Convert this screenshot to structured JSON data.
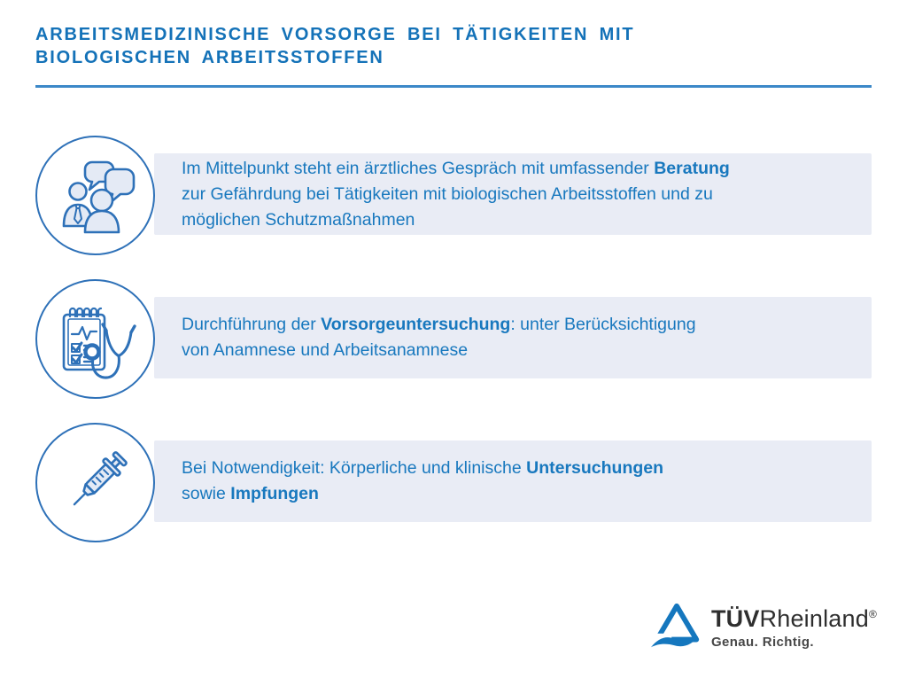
{
  "page": {
    "title_line1": "ARBEITSMEDIZINISCHE VORSORGE BEI TÄTIGKEITEN MIT",
    "title_line2": "BIOLOGISCHEN ARBEITSSTOFFEN"
  },
  "colors": {
    "title_blue": "#1472b8",
    "body_text_blue": "#1878be",
    "divider_blue": "#3c88c8",
    "box_background": "#e9ecf5",
    "icon_stroke_blue": "#2e71b8",
    "icon_fill_light": "#e4eaf5",
    "logo_blue": "#1577be",
    "logo_text_dark": "#2e2e2e"
  },
  "rows": [
    {
      "icon": "consultation-people-icon",
      "lines": [
        [
          {
            "text": "Im Mittelpunkt steht ein ärztliches Gespräch mit umfassender ",
            "bold": false
          },
          {
            "text": "Beratung",
            "bold": true
          }
        ],
        [
          {
            "text": "zur Gefährdung bei Tätigkeiten mit biologischen Arbeitsstoffen und zu",
            "bold": false
          }
        ],
        [
          {
            "text": "möglichen Schutzmaßnahmen",
            "bold": false
          }
        ]
      ]
    },
    {
      "icon": "checklist-stethoscope-icon",
      "lines": [
        [
          {
            "text": "Durchführung der ",
            "bold": false
          },
          {
            "text": "Vorsorgeuntersuchung",
            "bold": true
          },
          {
            "text": ": unter Berücksichtigung",
            "bold": false
          }
        ],
        [
          {
            "text": "von Anamnese und Arbeitsanamnese",
            "bold": false
          }
        ]
      ]
    },
    {
      "icon": "syringe-icon",
      "lines": [
        [
          {
            "text": "Bei Notwendigkeit: Körperliche und klinische ",
            "bold": false
          },
          {
            "text": "Untersuchungen",
            "bold": true
          }
        ],
        [
          {
            "text": "sowie ",
            "bold": false
          },
          {
            "text": "Impfungen",
            "bold": true
          }
        ]
      ]
    }
  ],
  "logo": {
    "brand_bold": "TÜV",
    "brand_regular": "Rheinland",
    "registered_mark": "®",
    "tagline": "Genau. Richtig."
  }
}
